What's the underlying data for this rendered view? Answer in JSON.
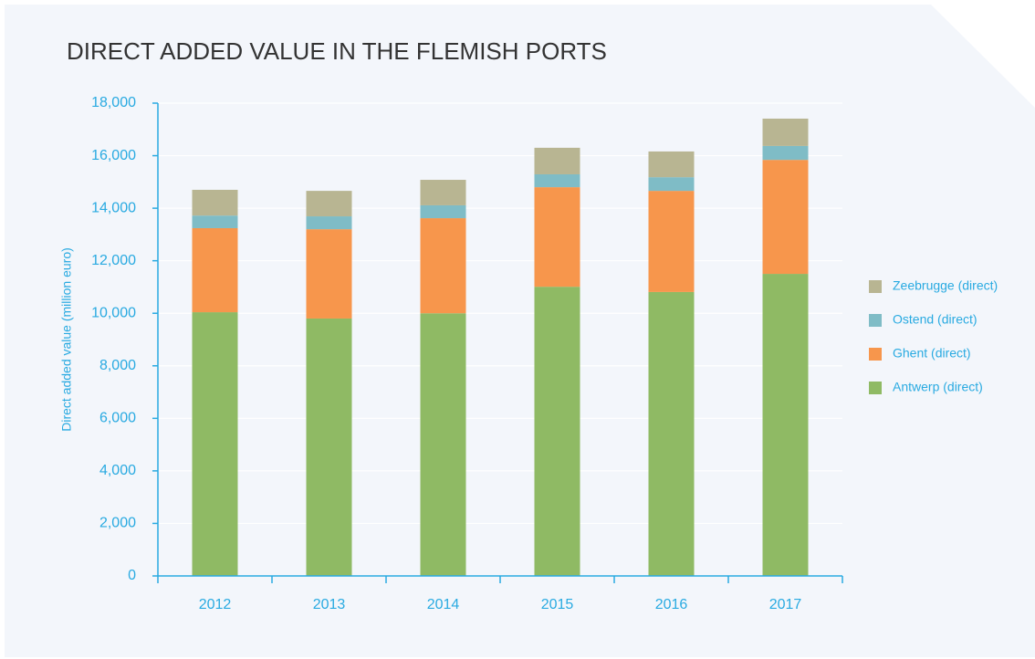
{
  "chart_data": {
    "type": "stacked_bar",
    "title": "DIRECT ADDED VALUE IN THE FLEMISH PORTS",
    "y_label": "Direct added value (million euro)",
    "categories": [
      "2012",
      "2013",
      "2014",
      "2015",
      "2016",
      "2017"
    ],
    "series": [
      {
        "name": "Antwerp (direct)",
        "color": "#8fba64",
        "values": [
          10040,
          9800,
          10000,
          11010,
          10810,
          11500
        ]
      },
      {
        "name": "Ghent (direct)",
        "color": "#f7964c",
        "values": [
          3200,
          3400,
          3620,
          3790,
          3850,
          4340
        ]
      },
      {
        "name": "Ostend (direct)",
        "color": "#7fbcc6",
        "values": [
          480,
          490,
          490,
          490,
          520,
          530
        ]
      },
      {
        "name": "Zeebrugge (direct)",
        "color": "#b8b592",
        "values": [
          980,
          970,
          970,
          1010,
          980,
          1040
        ]
      }
    ],
    "ylim": [
      0,
      18000
    ],
    "yticks": [
      {
        "value": 0,
        "label": "0"
      },
      {
        "value": 2000,
        "label": "2,000"
      },
      {
        "value": 4000,
        "label": "4,000"
      },
      {
        "value": 6000,
        "label": "6,000"
      },
      {
        "value": 8000,
        "label": "8,000"
      },
      {
        "value": 10000,
        "label": "10,000"
      },
      {
        "value": 12000,
        "label": "12,000"
      },
      {
        "value": 14000,
        "label": "14,000"
      },
      {
        "value": 16000,
        "label": "16,000"
      },
      {
        "value": 18000,
        "label": "18,000"
      }
    ],
    "grid": true,
    "legend": "right"
  }
}
